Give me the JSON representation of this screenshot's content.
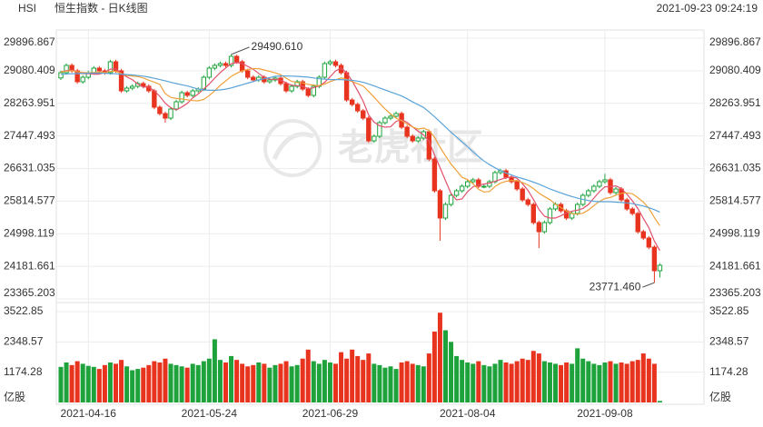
{
  "chart_data": {
    "type": "candlestick",
    "symbol": "HSI",
    "title": "恒生指数 - 日K线图",
    "timestamp": "2021-09-23 09:24:19",
    "watermark": "老虎社区",
    "grid": true,
    "up_color": "#1ea33c",
    "down_color": "#e8341f",
    "categories": [
      null,
      null,
      null,
      null,
      null,
      "2021-04-16",
      null,
      null,
      null,
      null,
      null,
      null,
      null,
      null,
      null,
      null,
      null,
      null,
      null,
      null,
      null,
      null,
      null,
      null,
      null,
      null,
      null,
      "2021-05-24",
      null,
      null,
      null,
      null,
      null,
      null,
      null,
      null,
      null,
      null,
      null,
      null,
      null,
      null,
      null,
      null,
      null,
      null,
      null,
      null,
      null,
      "2021-06-29",
      null,
      null,
      null,
      null,
      null,
      null,
      null,
      null,
      null,
      null,
      null,
      null,
      null,
      null,
      null,
      null,
      null,
      null,
      null,
      null,
      null,
      null,
      null,
      null,
      "2021-08-04",
      null,
      null,
      null,
      null,
      null,
      null,
      null,
      null,
      null,
      null,
      null,
      null,
      null,
      null,
      null,
      null,
      null,
      null,
      null,
      null,
      null,
      null,
      null,
      null,
      "2021-09-08",
      null,
      null,
      null,
      null,
      null,
      null,
      null,
      null,
      null,
      null
    ],
    "open": [
      28900,
      29032,
      29214,
      29078,
      28805,
      28918,
      29032,
      29146,
      29078,
      29032,
      29305,
      29078,
      28577,
      28645,
      28691,
      28759,
      28691,
      28577,
      28167,
      28008,
      27894,
      28122,
      28304,
      28531,
      28463,
      28577,
      28622,
      28918,
      29146,
      29214,
      29260,
      29214,
      29442,
      29305,
      29078,
      28918,
      28850,
      28918,
      28805,
      28850,
      28896,
      28759,
      28577,
      28691,
      28805,
      28622,
      28463,
      28691,
      28918,
      29260,
      29305,
      29214,
      29032,
      28349,
      28236,
      28076,
      27894,
      27325,
      27439,
      27780,
      27894,
      27940,
      28008,
      27667,
      27439,
      27325,
      27394,
      27553,
      26870,
      26074,
      25391,
      25732,
      25960,
      26074,
      26187,
      26301,
      26347,
      26187,
      26187,
      26301,
      26529,
      26574,
      26415,
      26301,
      26119,
      25846,
      25732,
      25277,
      25049,
      25277,
      25618,
      25732,
      25572,
      25391,
      25505,
      25732,
      25960,
      26074,
      26187,
      26301,
      26347,
      26028,
      26119,
      25846,
      25618,
      25505,
      25049,
      24890,
      24662,
      24071
    ],
    "high": [
      29082,
      29264,
      29264,
      29128,
      28968,
      29082,
      29196,
      29196,
      29128,
      29355,
      29355,
      29128,
      28695,
      28741,
      28809,
      28809,
      28741,
      28627,
      28217,
      28058,
      28172,
      28354,
      28581,
      28581,
      28627,
      28672,
      28968,
      29196,
      29264,
      29310,
      29310,
      29490.61,
      29480,
      29355,
      29128,
      28968,
      28968,
      28968,
      28900,
      28946,
      28946,
      28809,
      28741,
      28855,
      28855,
      28672,
      28741,
      28968,
      29310,
      29355,
      29355,
      29264,
      29082,
      28399,
      28286,
      28126,
      27944,
      27489,
      27830,
      27944,
      27990,
      28058,
      28058,
      27717,
      27489,
      27444,
      27603,
      27603,
      26920,
      26124,
      25782,
      26010,
      26124,
      26237,
      26351,
      26397,
      26397,
      26237,
      26351,
      26579,
      26624,
      26624,
      26465,
      26351,
      26169,
      25896,
      25782,
      25327,
      25327,
      25668,
      25782,
      25782,
      25622,
      25555,
      25782,
      26010,
      26124,
      26237,
      26351,
      26500,
      26397,
      26169,
      26169,
      25896,
      25668,
      25555,
      25099,
      24940,
      24712,
      24257
    ],
    "low": [
      28850,
      28982,
      29028,
      28755,
      28755,
      28868,
      28982,
      29028,
      28982,
      28982,
      29028,
      28527,
      28527,
      28595,
      28641,
      28641,
      28527,
      28117,
      27958,
      27780,
      27844,
      28072,
      28254,
      28413,
      28413,
      28527,
      28572,
      28868,
      29096,
      29164,
      29164,
      29164,
      29255,
      29028,
      28868,
      28800,
      28800,
      28755,
      28755,
      28800,
      28709,
      28527,
      28527,
      28641,
      28572,
      28413,
      28413,
      28641,
      28868,
      29210,
      29164,
      28982,
      28299,
      28186,
      28026,
      27844,
      27275,
      27275,
      27389,
      27730,
      27844,
      27890,
      27617,
      27389,
      27275,
      27275,
      27344,
      26820,
      26024,
      24822,
      25341,
      25682,
      25910,
      26024,
      26137,
      26251,
      26137,
      26137,
      26137,
      26251,
      26479,
      26365,
      26251,
      26069,
      25796,
      25682,
      25227,
      24640,
      24999,
      25227,
      25568,
      25522,
      25341,
      25341,
      25455,
      25682,
      25910,
      26024,
      26137,
      26251,
      25978,
      25978,
      25796,
      25568,
      25455,
      24999,
      24840,
      24612,
      23771.46,
      23900
    ],
    "close": [
      29032,
      29214,
      29078,
      28805,
      28918,
      29032,
      29146,
      29078,
      29032,
      29305,
      29078,
      28577,
      28645,
      28691,
      28759,
      28691,
      28577,
      28167,
      28008,
      27894,
      28122,
      28304,
      28531,
      28463,
      28577,
      28622,
      28918,
      29146,
      29214,
      29260,
      29214,
      29442,
      29305,
      29078,
      28918,
      28850,
      28918,
      28805,
      28850,
      28896,
      28759,
      28577,
      28691,
      28805,
      28622,
      28463,
      28691,
      28918,
      29260,
      29305,
      29214,
      29032,
      28349,
      28236,
      28076,
      27894,
      27325,
      27439,
      27780,
      27894,
      27940,
      28008,
      27667,
      27439,
      27325,
      27394,
      27553,
      26870,
      26074,
      25391,
      25732,
      25960,
      26074,
      26187,
      26301,
      26347,
      26187,
      26187,
      26301,
      26529,
      26574,
      26415,
      26301,
      26119,
      25846,
      25732,
      25277,
      25049,
      25277,
      25618,
      25732,
      25572,
      25391,
      25505,
      25732,
      25960,
      26074,
      26187,
      26301,
      26347,
      26028,
      26119,
      25846,
      25618,
      25505,
      25049,
      24890,
      24662,
      24071,
      24207
    ],
    "max_label": "29490.610",
    "min_label": "23771.460",
    "ylim": [
      23365.203,
      29896.867
    ],
    "yticks": [
      23365.203,
      24181.661,
      24998.119,
      25814.577,
      26631.035,
      27447.493,
      28263.951,
      29080.409,
      29896.867
    ],
    "ma_lines": [
      {
        "color": "#e2516c",
        "values": [
          29050,
          29080,
          29100,
          29030,
          29009,
          29009,
          28996,
          28996,
          29041,
          29119,
          29128,
          29014,
          28927,
          28859,
          28750,
          28673,
          28673,
          28577,
          28440,
          28267,
          28154,
          28099,
          28172,
          28263,
          28399,
          28499,
          28622,
          28745,
          28895,
          29032,
          29150,
          29255,
          29287,
          29260,
          29191,
          29119,
          29013,
          28914,
          28868,
          28864,
          28846,
          28777,
          28715,
          28706,
          28691,
          28632,
          28654,
          28700,
          28791,
          28927,
          29078,
          29146,
          29032,
          28827,
          28581,
          28317,
          27976,
          27794,
          27703,
          27666,
          27676,
          27812,
          27858,
          27790,
          27676,
          27567,
          27476,
          27316,
          26969,
          26656,
          26324,
          26005,
          25846,
          25869,
          26051,
          26174,
          26219,
          26242,
          26265,
          26310,
          26356,
          26401,
          26424,
          26388,
          26251,
          26083,
          25855,
          25605,
          25436,
          25391,
          25391,
          25450,
          25518,
          25564,
          25587,
          25632,
          25732,
          25892,
          26051,
          26174,
          26178,
          26196,
          26128,
          25992,
          25823,
          25627,
          25382,
          25145,
          24815,
          24576
        ]
      },
      {
        "color": "#f0a03a",
        "values": [
          29050,
          29070,
          29080,
          29060,
          29040,
          29030,
          29038,
          29048,
          29035,
          29064,
          29068,
          29005,
          28962,
          28950,
          28935,
          28900,
          28843,
          28795,
          28740,
          28508,
          28413,
          28386,
          28374,
          28352,
          28333,
          28327,
          28360,
          28458,
          28579,
          28716,
          28824,
          28938,
          29016,
          29078,
          29111,
          29134,
          29134,
          29100,
          29064,
          29027,
          28982,
          28895,
          28814,
          28787,
          28777,
          28739,
          28715,
          28707,
          28748,
          28809,
          28855,
          28900,
          28866,
          28809,
          28754,
          28697,
          28561,
          28420,
          28265,
          28123,
          27996,
          27894,
          27830,
          27746,
          27671,
          27621,
          27644,
          27587,
          27413,
          27166,
          26946,
          26741,
          26581,
          26413,
          26353,
          26249,
          26112,
          26044,
          26056,
          26180,
          26265,
          26310,
          26333,
          26326,
          26281,
          26219,
          26128,
          26015,
          25930,
          25851,
          25737,
          25652,
          25564,
          25500,
          25489,
          25511,
          25591,
          25705,
          25807,
          25880,
          25905,
          25964,
          26010,
          26021,
          25999,
          25900,
          25789,
          25637,
          25404,
          25200
        ]
      },
      {
        "color": "#5ba4d9",
        "values": [
          28990,
          29000,
          29005,
          29010,
          29015,
          29020,
          29020,
          29020,
          29015,
          29010,
          29005,
          28995,
          28985,
          28975,
          28960,
          28945,
          28920,
          28890,
          28860,
          28830,
          28790,
          28760,
          28730,
          28700,
          28660,
          28620,
          28600,
          28590,
          28590,
          28600,
          28620,
          28650,
          28690,
          28730,
          28770,
          28810,
          28850,
          28880,
          28910,
          28940,
          28950,
          28950,
          28945,
          28940,
          28930,
          28920,
          28900,
          28880,
          28870,
          28860,
          28860,
          28860,
          28850,
          28840,
          28820,
          28790,
          28750,
          28700,
          28650,
          28600,
          28550,
          28500,
          28450,
          28380,
          28300,
          28230,
          28160,
          28050,
          27930,
          27800,
          27670,
          27540,
          27420,
          27300,
          27180,
          27050,
          26930,
          26820,
          26730,
          26650,
          26580,
          26520,
          26470,
          26420,
          26380,
          26340,
          26290,
          26240,
          26180,
          26120,
          26070,
          26020,
          25970,
          25930,
          25890,
          25860,
          25830,
          25810,
          25800,
          25800,
          25800,
          25790,
          25780,
          25770,
          25750,
          25720,
          25690,
          25650,
          25600,
          25540
        ]
      }
    ],
    "volume": {
      "unit": "亿股",
      "ylim": [
        0,
        3522.85
      ],
      "yticks": [
        1174.28,
        2348.57,
        3522.85
      ],
      "values": [
        1380,
        1550,
        1450,
        1600,
        1500,
        1420,
        1380,
        1300,
        1450,
        1550,
        1500,
        1650,
        1400,
        1250,
        1300,
        1350,
        1450,
        1600,
        1550,
        1700,
        1500,
        1450,
        1400,
        1350,
        1500,
        1450,
        1600,
        1700,
        2450,
        1650,
        1550,
        1800,
        1650,
        1500,
        1400,
        1450,
        1550,
        1500,
        1350,
        1450,
        1500,
        1600,
        1400,
        1450,
        1700,
        2050,
        1600,
        1500,
        1650,
        1550,
        1500,
        1950,
        1700,
        2050,
        1800,
        1650,
        1900,
        1500,
        1450,
        1350,
        1400,
        1300,
        1550,
        1600,
        1500,
        1450,
        1400,
        1900,
        2750,
        3480,
        2800,
        2350,
        1800,
        1650,
        1550,
        1500,
        1600,
        1450,
        1400,
        1500,
        1650,
        1550,
        1500,
        1600,
        1700,
        1650,
        2000,
        1900,
        1600,
        1550,
        1500,
        1450,
        1550,
        1500,
        2100,
        1700,
        1600,
        1500,
        1450,
        1550,
        1600,
        1500,
        1550,
        1500,
        1600,
        1650,
        1900,
        1700,
        1500,
        60
      ]
    }
  }
}
